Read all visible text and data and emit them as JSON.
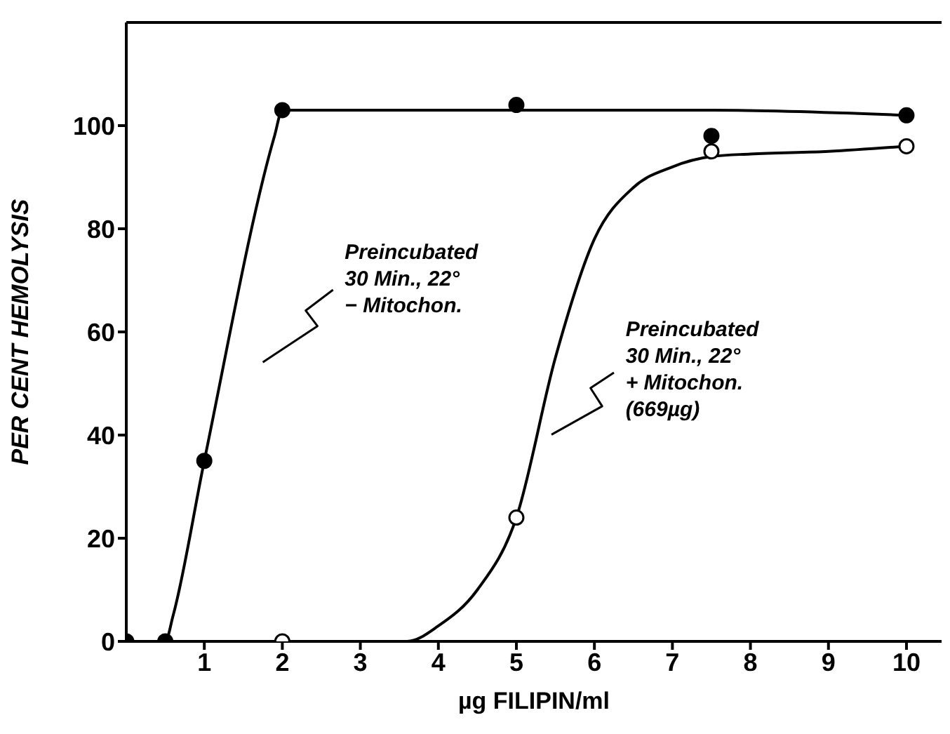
{
  "chart_data": {
    "type": "scatter",
    "xlabel": "µg FILIPIN/ml",
    "ylabel": "PER CENT HEMOLYSIS",
    "xlim": [
      0,
      10.45
    ],
    "ylim": [
      0,
      120
    ],
    "xticks": [
      1,
      2,
      3,
      4,
      5,
      6,
      7,
      8,
      9,
      10
    ],
    "yticks": [
      0,
      20,
      40,
      60,
      80,
      100
    ],
    "series": [
      {
        "type": "line",
        "color": "#000000",
        "marker": "none",
        "x": [
          0,
          0.5,
          0.6,
          1,
          1.9,
          2,
          3,
          5,
          7.5,
          10
        ],
        "values": [
          0,
          0,
          5,
          35,
          98,
          103,
          103,
          103,
          103,
          102
        ]
      },
      {
        "type": "line",
        "color": "#000000",
        "marker": "none",
        "x": [
          2,
          3,
          3.6,
          4,
          4.5,
          5,
          5.5,
          6,
          6.5,
          7,
          7.5,
          8,
          9,
          10
        ],
        "values": [
          0,
          0,
          0,
          3,
          10,
          24,
          55,
          78,
          88,
          92,
          94,
          94.5,
          95,
          96
        ]
      },
      {
        "color": "#000000",
        "marker": "circle",
        "x": [
          0,
          0.5,
          1,
          2,
          5,
          7.5,
          10
        ],
        "values": [
          0,
          0,
          35,
          103,
          104,
          98,
          102
        ]
      },
      {
        "color": "#ffffff",
        "marker": "circle",
        "x": [
          2,
          5,
          7.5,
          10
        ],
        "values": [
          0,
          24,
          95,
          96
        ]
      }
    ],
    "annotations": [
      "Preincubated\n30 Min., 22°\n− Mitochon.",
      "Preincubated\n30 Min., 22°\n+ Mitochon.\n(669µg)"
    ]
  }
}
